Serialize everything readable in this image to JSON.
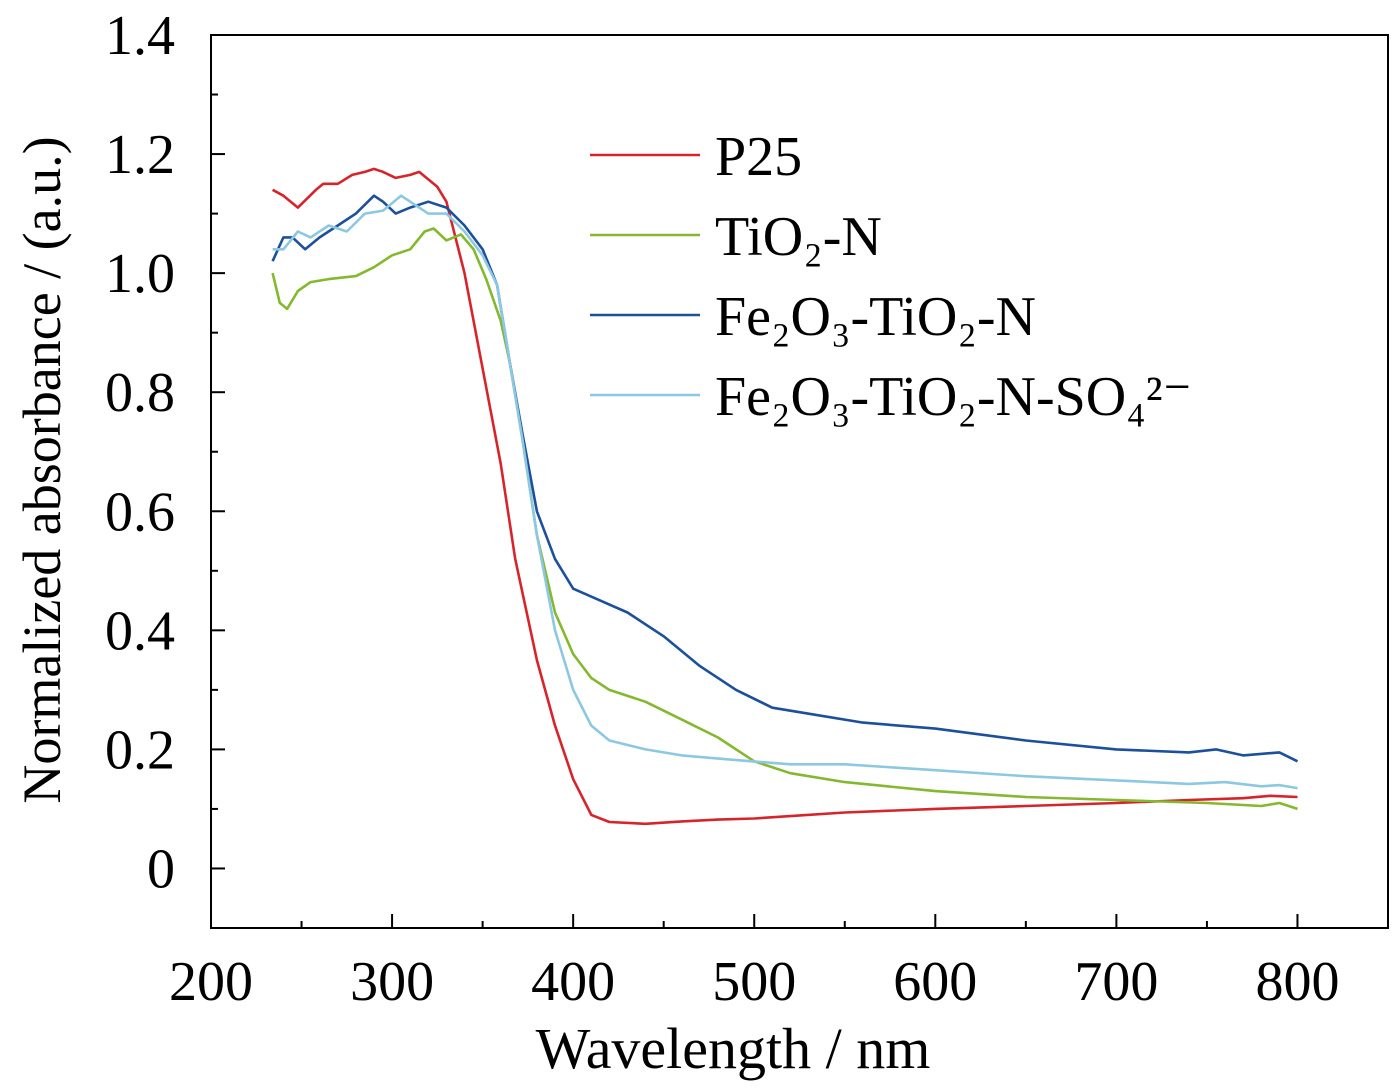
{
  "chart_data": {
    "type": "line",
    "xlabel": "Wavelength / nm",
    "ylabel": "Normalized absorbance / (a.u.)",
    "xlim": [
      200,
      850
    ],
    "ylim": [
      -0.1,
      1.4
    ],
    "x_ticks": [
      200,
      300,
      400,
      500,
      600,
      700,
      800
    ],
    "x_tick_labels": [
      "200",
      "300",
      "400",
      "500",
      "600",
      "700",
      "800"
    ],
    "y_ticks": [
      0,
      0.2,
      0.4,
      0.6,
      0.8,
      1.0,
      1.2,
      1.4
    ],
    "y_tick_labels": [
      "0",
      "0.2",
      "0.4",
      "0.6",
      "0.8",
      "1.0",
      "1.2",
      "1.4"
    ],
    "grid": false,
    "legend_position": "top-right",
    "series": [
      {
        "name": "P25",
        "color": "#d7242b",
        "points": [
          [
            234,
            1.14
          ],
          [
            240,
            1.13
          ],
          [
            248,
            1.11
          ],
          [
            258,
            1.14
          ],
          [
            262,
            1.15
          ],
          [
            270,
            1.15
          ],
          [
            278,
            1.165
          ],
          [
            285,
            1.17
          ],
          [
            290,
            1.175
          ],
          [
            295,
            1.17
          ],
          [
            302,
            1.16
          ],
          [
            310,
            1.165
          ],
          [
            315,
            1.17
          ],
          [
            325,
            1.145
          ],
          [
            330,
            1.12
          ],
          [
            340,
            1.0
          ],
          [
            350,
            0.84
          ],
          [
            360,
            0.68
          ],
          [
            368,
            0.52
          ],
          [
            380,
            0.35
          ],
          [
            390,
            0.24
          ],
          [
            400,
            0.15
          ],
          [
            410,
            0.09
          ],
          [
            420,
            0.078
          ],
          [
            440,
            0.075
          ],
          [
            460,
            0.079
          ],
          [
            480,
            0.082
          ],
          [
            500,
            0.084
          ],
          [
            520,
            0.088
          ],
          [
            550,
            0.094
          ],
          [
            600,
            0.1
          ],
          [
            650,
            0.105
          ],
          [
            700,
            0.11
          ],
          [
            740,
            0.115
          ],
          [
            770,
            0.118
          ],
          [
            785,
            0.122
          ],
          [
            800,
            0.12
          ]
        ]
      },
      {
        "name": "TiO₂-N",
        "color": "#84b82f",
        "points": [
          [
            234,
            1.0
          ],
          [
            238,
            0.95
          ],
          [
            242,
            0.94
          ],
          [
            248,
            0.97
          ],
          [
            255,
            0.985
          ],
          [
            265,
            0.99
          ],
          [
            280,
            0.995
          ],
          [
            290,
            1.01
          ],
          [
            300,
            1.03
          ],
          [
            310,
            1.04
          ],
          [
            318,
            1.07
          ],
          [
            323,
            1.075
          ],
          [
            330,
            1.055
          ],
          [
            338,
            1.065
          ],
          [
            345,
            1.04
          ],
          [
            352,
            0.99
          ],
          [
            360,
            0.92
          ],
          [
            365,
            0.85
          ],
          [
            372,
            0.72
          ],
          [
            380,
            0.56
          ],
          [
            390,
            0.43
          ],
          [
            400,
            0.36
          ],
          [
            410,
            0.32
          ],
          [
            420,
            0.3
          ],
          [
            440,
            0.28
          ],
          [
            460,
            0.25
          ],
          [
            480,
            0.22
          ],
          [
            500,
            0.18
          ],
          [
            520,
            0.16
          ],
          [
            550,
            0.145
          ],
          [
            600,
            0.13
          ],
          [
            650,
            0.12
          ],
          [
            700,
            0.115
          ],
          [
            750,
            0.11
          ],
          [
            780,
            0.105
          ],
          [
            790,
            0.11
          ],
          [
            800,
            0.1
          ]
        ]
      },
      {
        "name": "Fe₂O₃-TiO₂-N",
        "color": "#1c4f9c",
        "points": [
          [
            234,
            1.02
          ],
          [
            240,
            1.06
          ],
          [
            245,
            1.06
          ],
          [
            252,
            1.04
          ],
          [
            260,
            1.06
          ],
          [
            270,
            1.08
          ],
          [
            280,
            1.1
          ],
          [
            290,
            1.13
          ],
          [
            295,
            1.12
          ],
          [
            302,
            1.1
          ],
          [
            310,
            1.11
          ],
          [
            320,
            1.12
          ],
          [
            330,
            1.11
          ],
          [
            340,
            1.08
          ],
          [
            350,
            1.04
          ],
          [
            358,
            0.98
          ],
          [
            365,
            0.85
          ],
          [
            372,
            0.73
          ],
          [
            380,
            0.6
          ],
          [
            390,
            0.52
          ],
          [
            400,
            0.47
          ],
          [
            415,
            0.45
          ],
          [
            430,
            0.43
          ],
          [
            450,
            0.39
          ],
          [
            470,
            0.34
          ],
          [
            490,
            0.3
          ],
          [
            510,
            0.27
          ],
          [
            530,
            0.26
          ],
          [
            560,
            0.245
          ],
          [
            600,
            0.235
          ],
          [
            650,
            0.215
          ],
          [
            700,
            0.2
          ],
          [
            740,
            0.195
          ],
          [
            755,
            0.2
          ],
          [
            770,
            0.19
          ],
          [
            790,
            0.195
          ],
          [
            800,
            0.18
          ]
        ]
      },
      {
        "name": "Fe₂O₃-TiO₂-N-SO₄²⁻",
        "color": "#8dc8e2",
        "points": [
          [
            234,
            1.04
          ],
          [
            240,
            1.04
          ],
          [
            248,
            1.07
          ],
          [
            255,
            1.06
          ],
          [
            265,
            1.08
          ],
          [
            275,
            1.07
          ],
          [
            285,
            1.1
          ],
          [
            295,
            1.105
          ],
          [
            305,
            1.13
          ],
          [
            310,
            1.12
          ],
          [
            320,
            1.1
          ],
          [
            330,
            1.1
          ],
          [
            340,
            1.07
          ],
          [
            350,
            1.03
          ],
          [
            358,
            0.98
          ],
          [
            365,
            0.85
          ],
          [
            372,
            0.72
          ],
          [
            380,
            0.56
          ],
          [
            390,
            0.4
          ],
          [
            400,
            0.3
          ],
          [
            410,
            0.24
          ],
          [
            420,
            0.215
          ],
          [
            440,
            0.2
          ],
          [
            460,
            0.19
          ],
          [
            490,
            0.182
          ],
          [
            520,
            0.175
          ],
          [
            550,
            0.175
          ],
          [
            600,
            0.165
          ],
          [
            650,
            0.155
          ],
          [
            700,
            0.148
          ],
          [
            740,
            0.142
          ],
          [
            760,
            0.145
          ],
          [
            780,
            0.138
          ],
          [
            790,
            0.14
          ],
          [
            800,
            0.135
          ]
        ]
      }
    ]
  }
}
